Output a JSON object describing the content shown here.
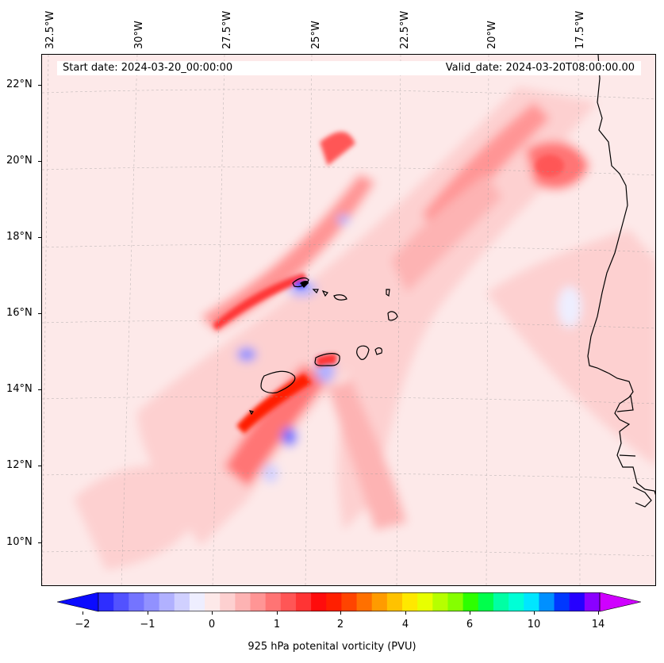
{
  "map": {
    "start_date": "Start date: 2024-03-20_00:00:00",
    "valid_date": "Valid_date: 2024-03-20T08:00:00.00",
    "lon_labels": [
      "32.5°W",
      "30°W",
      "27.5°W",
      "25°W",
      "22.5°W",
      "20°W",
      "17.5°W"
    ],
    "lat_labels": [
      "22°N",
      "20°N",
      "18°N",
      "16°N",
      "14°N",
      "12°N",
      "10°N"
    ],
    "background_color": "#fde9e9",
    "coastline_color": "#000000"
  },
  "colorbar": {
    "label": "925 hPa potenital vorticity (PVU)",
    "tick_labels": [
      "−2",
      "−1",
      "0",
      "1",
      "2",
      "4",
      "6",
      "10",
      "14"
    ],
    "colors": [
      "#0b0bff",
      "#2e2eff",
      "#5252ff",
      "#7474ff",
      "#9191ff",
      "#b1b1ff",
      "#d0d0ff",
      "#eeeeff",
      "#fde9e9",
      "#fdd0d0",
      "#fdb3b3",
      "#ff9595",
      "#ff7474",
      "#ff5656",
      "#ff3434",
      "#ff0c0c",
      "#ff1f00",
      "#ff4400",
      "#ff7000",
      "#ff9b00",
      "#ffc200",
      "#ffe800",
      "#e8ff00",
      "#b6ff00",
      "#85ff00",
      "#2dff00",
      "#00ff4c",
      "#00ffa4",
      "#00ffd6",
      "#00e6ff",
      "#0090ff",
      "#0038ff",
      "#2600ff",
      "#8a00ff",
      "#cf00ff"
    ]
  }
}
